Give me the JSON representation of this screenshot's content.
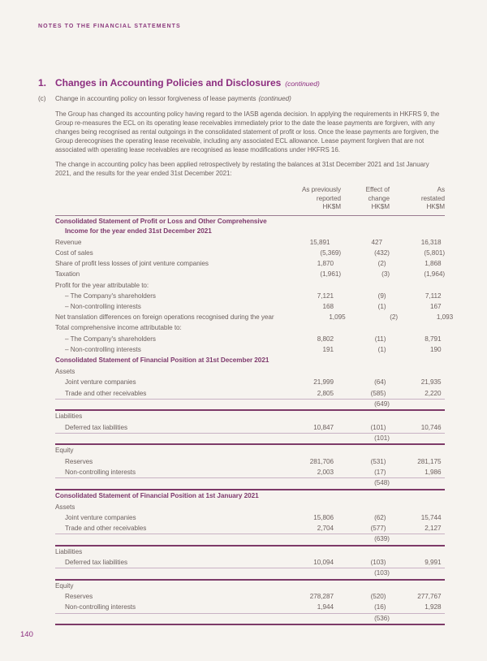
{
  "page": {
    "eyebrow": "NOTES TO THE FINANCIAL STATEMENTS",
    "page_number": "140",
    "colors": {
      "background": "#F6F3EF",
      "accent_purple": "#8C2D7F",
      "section_plum": "#7E3A6D",
      "body_text": "#6D615F",
      "rule_thin": "#C9B2C4",
      "rule_thick": "#7D3A68"
    }
  },
  "heading": {
    "number": "1.",
    "title": "Changes in Accounting Policies and Disclosures",
    "continued": "(continued)"
  },
  "subheading": {
    "number": "(c)",
    "text": "Change in accounting policy on lessor forgiveness of lease payments",
    "continued": "(continued)"
  },
  "paragraphs": [
    "The Group has changed its accounting policy having regard to the IASB agenda decision. In applying the requirements in HKFRS 9, the Group re-measures the ECL on its operating lease receivables immediately prior to the date the lease payments are forgiven, with any changes being recognised as rental outgoings in the consolidated statement of profit or loss. Once the lease payments are forgiven, the Group derecognises the operating lease receivable, including any associated ECL allowance. Lease payment forgiven that are not associated with operating lease receivables are recognised as lease modifications under HKFRS 16.",
    "The change in accounting policy has been applied retrospectively by restating the balances at 31st December 2021 and 1st January 2021, and the results for the year ended 31st December 2021:"
  ],
  "table": {
    "columns": [
      {
        "line1": "As previously",
        "line2": "reported",
        "line3": "HK$M"
      },
      {
        "line1": "Effect of",
        "line2": "change",
        "line3": "HK$M"
      },
      {
        "line1": "As",
        "line2": "restated",
        "line3": "HK$M"
      }
    ],
    "rows": [
      {
        "type": "section",
        "lines": [
          "Consolidated Statement of Profit or Loss and Other Comprehensive",
          "Income for the year ended 31st December 2021"
        ]
      },
      {
        "type": "data",
        "indent": 0,
        "label": "Revenue",
        "v": [
          "15,891",
          "427",
          "16,318"
        ]
      },
      {
        "type": "data",
        "indent": 0,
        "label": "Cost of sales",
        "v": [
          "(5,369)",
          "(432)",
          "(5,801)"
        ]
      },
      {
        "type": "data",
        "indent": 0,
        "label": "Share of profit less losses of joint venture companies",
        "v": [
          "1,870",
          "(2)",
          "1,868"
        ]
      },
      {
        "type": "data",
        "indent": 0,
        "label": "Taxation",
        "v": [
          "(1,961)",
          "(3)",
          "(1,964)"
        ]
      },
      {
        "type": "label",
        "indent": 0,
        "label": "Profit for the year attributable to:"
      },
      {
        "type": "data",
        "indent": 1,
        "label": "– The Company's shareholders",
        "v": [
          "7,121",
          "(9)",
          "7,112"
        ]
      },
      {
        "type": "data",
        "indent": 1,
        "label": "– Non-controlling interests",
        "v": [
          "168",
          "(1)",
          "167"
        ]
      },
      {
        "type": "data",
        "indent": 0,
        "label": "Net translation differences on foreign operations recognised during the year",
        "v": [
          "1,095",
          "(2)",
          "1,093"
        ]
      },
      {
        "type": "label",
        "indent": 0,
        "label": "Total comprehensive income attributable to:"
      },
      {
        "type": "data",
        "indent": 1,
        "label": "– The Company's shareholders",
        "v": [
          "8,802",
          "(11)",
          "8,791"
        ]
      },
      {
        "type": "data",
        "indent": 1,
        "label": "– Non-controlling interests",
        "v": [
          "191",
          "(1)",
          "190"
        ]
      },
      {
        "type": "section",
        "lines": [
          "Consolidated Statement of Financial Position at 31st December 2021"
        ]
      },
      {
        "type": "label",
        "indent": 0,
        "label": "Assets"
      },
      {
        "type": "data",
        "indent": 1,
        "label": "Joint venture companies",
        "v": [
          "21,999",
          "(64)",
          "21,935"
        ]
      },
      {
        "type": "data",
        "indent": 1,
        "label": "Trade and other receivables",
        "v": [
          "2,805",
          "(585)",
          "2,220"
        ]
      },
      {
        "type": "subtotal",
        "v2": "(649)"
      },
      {
        "type": "label",
        "indent": 0,
        "label": "Liabilities"
      },
      {
        "type": "data",
        "indent": 1,
        "label": "Deferred tax liabilities",
        "v": [
          "10,847",
          "(101)",
          "10,746"
        ]
      },
      {
        "type": "subtotal",
        "v2": "(101)"
      },
      {
        "type": "label",
        "indent": 0,
        "label": "Equity"
      },
      {
        "type": "data",
        "indent": 1,
        "label": "Reserves",
        "v": [
          "281,706",
          "(531)",
          "281,175"
        ]
      },
      {
        "type": "data",
        "indent": 1,
        "label": "Non-controlling interests",
        "v": [
          "2,003",
          "(17)",
          "1,986"
        ]
      },
      {
        "type": "subtotal",
        "v2": "(548)"
      },
      {
        "type": "section",
        "lines": [
          "Consolidated Statement of Financial Position at 1st January 2021"
        ]
      },
      {
        "type": "label",
        "indent": 0,
        "label": "Assets"
      },
      {
        "type": "data",
        "indent": 1,
        "label": "Joint venture companies",
        "v": [
          "15,806",
          "(62)",
          "15,744"
        ]
      },
      {
        "type": "data",
        "indent": 1,
        "label": "Trade and other receivables",
        "v": [
          "2,704",
          "(577)",
          "2,127"
        ]
      },
      {
        "type": "subtotal",
        "v2": "(639)"
      },
      {
        "type": "label",
        "indent": 0,
        "label": "Liabilities"
      },
      {
        "type": "data",
        "indent": 1,
        "label": "Deferred tax liabilities",
        "v": [
          "10,094",
          "(103)",
          "9,991"
        ]
      },
      {
        "type": "subtotal",
        "v2": "(103)"
      },
      {
        "type": "label",
        "indent": 0,
        "label": "Equity"
      },
      {
        "type": "data",
        "indent": 1,
        "label": "Reserves",
        "v": [
          "278,287",
          "(520)",
          "277,767"
        ]
      },
      {
        "type": "data",
        "indent": 1,
        "label": "Non-controlling interests",
        "v": [
          "1,944",
          "(16)",
          "1,928"
        ]
      },
      {
        "type": "subtotal",
        "v2": "(536)"
      }
    ]
  }
}
